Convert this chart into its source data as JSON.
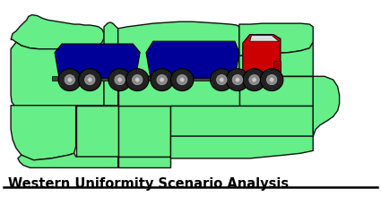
{
  "title": "Western Uniformity Scenario Analysis",
  "title_fontsize": 10.5,
  "map_fill_color": "#66EE88",
  "map_edge_color": "#111111",
  "map_linewidth": 1.0,
  "trailer_color": "#000099",
  "truck_body_color": "#CC0000",
  "truck_detail_color": "#FF3333",
  "wheel_color": "#222222",
  "wheel_rim_color": "#999999",
  "axle_color": "#555555",
  "background": "#ffffff",
  "line_color": "#000000",
  "xlim": [
    0,
    425
  ],
  "ylim": [
    0,
    200
  ]
}
